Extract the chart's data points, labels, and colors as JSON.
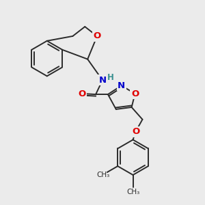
{
  "background_color": "#ebebeb",
  "bond_color": "#2a2a2a",
  "atom_colors": {
    "O": "#e00000",
    "N": "#0000cc",
    "H": "#3a9090",
    "C": "#2a2a2a"
  },
  "figsize": [
    3.0,
    3.0
  ],
  "dpi": 100
}
